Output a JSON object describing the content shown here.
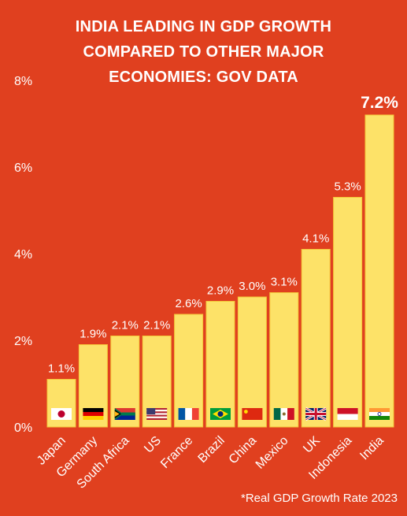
{
  "title_lines": [
    "INDIA LEADING IN GDP GROWTH",
    "COMPARED TO OTHER MAJOR",
    "ECONOMIES: GOV DATA"
  ],
  "footnote": "*Real GDP Growth Rate 2023",
  "colors": {
    "background": "#e0401f",
    "bar": "#fde268",
    "bar_border": "#f4c93a",
    "text": "#ffffff"
  },
  "chart_data": {
    "type": "bar",
    "title": "INDIA LEADING IN GDP GROWTH COMPARED TO OTHER MAJOR ECONOMIES: GOV DATA",
    "categories": [
      "Japan",
      "Germany",
      "South Africa",
      "US",
      "France",
      "Brazil",
      "China",
      "Mexico",
      "UK",
      "Indonesia",
      "India"
    ],
    "values": [
      1.1,
      1.9,
      2.1,
      2.1,
      2.6,
      2.9,
      3.0,
      3.1,
      4.1,
      5.3,
      7.2
    ],
    "value_labels": [
      "1.1%",
      "1.9%",
      "2.1%",
      "2.1%",
      "2.6%",
      "2.9%",
      "3.0%",
      "3.1%",
      "4.1%",
      "5.3%",
      "7.2%"
    ],
    "highlight_category": "India",
    "flag_icons": [
      "japan-flag-icon",
      "germany-flag-icon",
      "south-africa-flag-icon",
      "us-flag-icon",
      "france-flag-icon",
      "brazil-flag-icon",
      "china-flag-icon",
      "mexico-flag-icon",
      "uk-flag-icon",
      "indonesia-flag-icon",
      "india-flag-icon"
    ],
    "yticks": [
      "0%",
      "2%",
      "4%",
      "6%",
      "8%"
    ],
    "ytick_values": [
      0,
      2,
      4,
      6,
      8
    ],
    "ylim": [
      0,
      8
    ],
    "xlabel": "",
    "ylabel": "",
    "grid": false,
    "legend": "none"
  }
}
